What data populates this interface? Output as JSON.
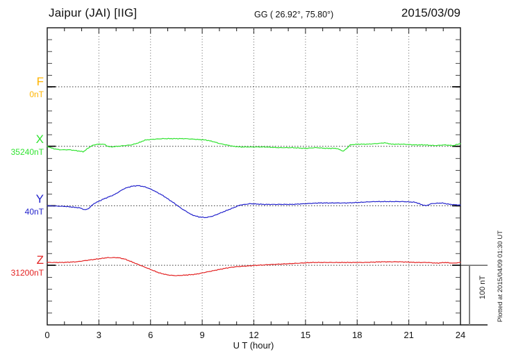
{
  "header": {
    "station_title": "Jaipur (JAI)  [IIG]",
    "coordinates": "GG ( 26.92°,  75.80°)",
    "date": "2015/03/09"
  },
  "x_axis": {
    "label": "U T (hour)"
  },
  "scale_bar": {
    "label": "100 nT"
  },
  "plotted_note": "Plotted at 2015/04/09 01:30 UT",
  "chart_data": {
    "type": "line",
    "title": "Jaipur (JAI) [IIG] magnetogram, 2015/03/09",
    "xlabel": "U T (hour)",
    "x_range": [
      0,
      24
    ],
    "x_tick_hours": [
      0,
      3,
      6,
      9,
      12,
      15,
      18,
      21,
      24
    ],
    "x_tick_labels": [
      "0",
      "3",
      "6",
      "9",
      "12",
      "15",
      "18",
      "21",
      "24"
    ],
    "x_minor_tick_step_hours": 1,
    "grid": "dotted vertical lines every 3 h; dotted horizontal baseline per channel",
    "legend_position": "left margin, one colored label per channel",
    "scale_bar_nT": 100,
    "channels": [
      {
        "id": "F",
        "label": "F",
        "baseline_label": "0nT",
        "color": "#ffb400",
        "points": []
      },
      {
        "id": "X",
        "label": "X",
        "baseline_label": "35240nT",
        "color": "#2fe32f",
        "points": [
          [
            0,
            0
          ],
          [
            0.3,
            -3.5
          ],
          [
            0.7,
            -5.8
          ],
          [
            1.3,
            -5.8
          ],
          [
            1.9,
            -8.2
          ],
          [
            2.1,
            -9.3
          ],
          [
            2.3,
            -4.7
          ],
          [
            2.6,
            1.2
          ],
          [
            2.9,
            3.5
          ],
          [
            3.3,
            3.5
          ],
          [
            3.5,
            0
          ],
          [
            3.7,
            -1.2
          ],
          [
            4.1,
            0
          ],
          [
            4.5,
            1.2
          ],
          [
            4.9,
            2.3
          ],
          [
            5.3,
            5.8
          ],
          [
            5.7,
            10.5
          ],
          [
            6.1,
            11.7
          ],
          [
            6.7,
            12.8
          ],
          [
            7.3,
            12.8
          ],
          [
            8.0,
            12.8
          ],
          [
            8.6,
            11.7
          ],
          [
            9.2,
            10.5
          ],
          [
            9.6,
            8.2
          ],
          [
            10.0,
            4.7
          ],
          [
            10.4,
            2.3
          ],
          [
            10.8,
            0
          ],
          [
            11.2,
            -1.2
          ],
          [
            11.8,
            -1.2
          ],
          [
            12.6,
            -1.2
          ],
          [
            13.4,
            -2.3
          ],
          [
            14.2,
            -2.3
          ],
          [
            15.0,
            -3.5
          ],
          [
            15.6,
            -2.3
          ],
          [
            16.2,
            -3.5
          ],
          [
            16.8,
            -3.5
          ],
          [
            17.2,
            -8.2
          ],
          [
            17.4,
            -3.5
          ],
          [
            17.6,
            2.3
          ],
          [
            18.0,
            3.5
          ],
          [
            18.6,
            3.5
          ],
          [
            19.2,
            4.7
          ],
          [
            19.6,
            5.8
          ],
          [
            20.0,
            3.5
          ],
          [
            20.7,
            3.5
          ],
          [
            21.3,
            2.3
          ],
          [
            21.9,
            2.3
          ],
          [
            22.5,
            1.2
          ],
          [
            23.1,
            2.3
          ],
          [
            23.6,
            1.2
          ],
          [
            24,
            4.7
          ]
        ]
      },
      {
        "id": "Y",
        "label": "Y",
        "baseline_label": "40nT",
        "color": "#2121cc",
        "points": [
          [
            0,
            0
          ],
          [
            1.1,
            -1.2
          ],
          [
            1.9,
            -3.5
          ],
          [
            2.2,
            -7
          ],
          [
            2.4,
            -4.7
          ],
          [
            2.7,
            3.5
          ],
          [
            3.3,
            11.7
          ],
          [
            3.9,
            18.7
          ],
          [
            4.5,
            29.2
          ],
          [
            4.9,
            32.7
          ],
          [
            5.3,
            33.8
          ],
          [
            5.7,
            31.5
          ],
          [
            6.1,
            26.8
          ],
          [
            6.7,
            17.5
          ],
          [
            7.3,
            5.8
          ],
          [
            7.8,
            -4.7
          ],
          [
            8.4,
            -15.2
          ],
          [
            8.8,
            -18.7
          ],
          [
            9.2,
            -19.8
          ],
          [
            9.6,
            -17.5
          ],
          [
            10.2,
            -10.5
          ],
          [
            10.7,
            -4.7
          ],
          [
            11.2,
            1.2
          ],
          [
            11.8,
            3.5
          ],
          [
            12.6,
            2.3
          ],
          [
            13.4,
            2.3
          ],
          [
            14.2,
            2.3
          ],
          [
            15.0,
            3.5
          ],
          [
            15.8,
            4.7
          ],
          [
            16.6,
            4.7
          ],
          [
            17.4,
            4.7
          ],
          [
            18.2,
            5.8
          ],
          [
            19.0,
            7
          ],
          [
            19.9,
            7
          ],
          [
            20.7,
            7
          ],
          [
            21.4,
            5.8
          ],
          [
            21.7,
            2.3
          ],
          [
            22.0,
            0
          ],
          [
            22.3,
            3.5
          ],
          [
            22.9,
            4.7
          ],
          [
            23.4,
            2.3
          ],
          [
            24,
            1.2
          ]
        ]
      },
      {
        "id": "Z",
        "label": "Z",
        "baseline_label": "31200nT",
        "color": "#e32020",
        "points": [
          [
            0,
            4.7
          ],
          [
            0.9,
            4.7
          ],
          [
            1.7,
            5.8
          ],
          [
            2.3,
            8.2
          ],
          [
            2.9,
            10.5
          ],
          [
            3.5,
            12.8
          ],
          [
            4.1,
            12.8
          ],
          [
            4.5,
            10.5
          ],
          [
            4.9,
            5.8
          ],
          [
            5.3,
            1.2
          ],
          [
            5.7,
            -3.5
          ],
          [
            6.1,
            -8.2
          ],
          [
            6.5,
            -12.8
          ],
          [
            7.0,
            -16.3
          ],
          [
            7.5,
            -17.5
          ],
          [
            8.1,
            -16.3
          ],
          [
            8.6,
            -15.2
          ],
          [
            9.2,
            -11.7
          ],
          [
            9.8,
            -8.2
          ],
          [
            10.4,
            -4.7
          ],
          [
            11.0,
            -2.3
          ],
          [
            11.6,
            -1.2
          ],
          [
            12.2,
            0
          ],
          [
            13.0,
            1.2
          ],
          [
            13.8,
            2.3
          ],
          [
            14.6,
            3.5
          ],
          [
            15.4,
            4.7
          ],
          [
            16.4,
            4.7
          ],
          [
            17.4,
            4.7
          ],
          [
            18.4,
            4.7
          ],
          [
            19.4,
            5.8
          ],
          [
            20.5,
            5.8
          ],
          [
            21.5,
            4.7
          ],
          [
            22.1,
            4.7
          ],
          [
            22.6,
            3.5
          ],
          [
            23.1,
            4.7
          ],
          [
            23.6,
            3.5
          ],
          [
            24,
            4.7
          ]
        ]
      }
    ]
  }
}
